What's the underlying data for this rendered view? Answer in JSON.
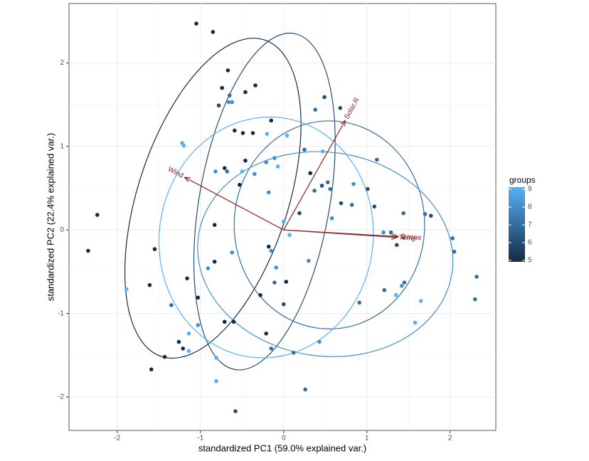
{
  "chart_data": {
    "type": "scatter",
    "xlabel": "standardized PC1 (59.0% explained var.)",
    "ylabel": "standardized PC2 (22.4% explained var.)",
    "xlim": [
      -2.58,
      2.55
    ],
    "ylim": [
      -2.4,
      2.71
    ],
    "xticks": [
      -2,
      -1,
      0,
      1,
      2
    ],
    "yticks": [
      -2,
      -1,
      0,
      1,
      2
    ],
    "grid": true,
    "x": [
      -1.05,
      -0.85,
      -0.67,
      -0.74,
      -0.34,
      -0.46,
      -0.65,
      -0.66,
      -0.62,
      -0.78,
      -0.15,
      0.38,
      0.49,
      0.68,
      -0.59,
      -0.49,
      -0.37,
      -0.2,
      0.04,
      -1.22,
      -1.2,
      0.25,
      0.47,
      1.12,
      -0.46,
      -0.11,
      -0.21,
      -0.07,
      -0.71,
      -0.82,
      -0.68,
      -0.5,
      -0.35,
      0.32,
      0.53,
      0.46,
      0.56,
      0.84,
      1.01,
      -0.53,
      -0.18,
      0.37,
      0.69,
      0.82,
      1.09,
      1.44,
      1.7,
      1.77,
      -2.24,
      0.19,
      0.58,
      0,
      -0.83,
      0.07,
      1.2,
      1.29,
      1.44,
      2.03,
      -2.35,
      -1.55,
      -0.18,
      -0.15,
      1.36,
      2.05,
      -0.62,
      -0.83,
      0.3,
      -0.91,
      -0.09,
      -1.16,
      0.03,
      -0.11,
      2.32,
      -1.61,
      -1.89,
      1.45,
      1.42,
      1.21,
      1.35,
      -0.28,
      -1.03,
      2.3,
      0.91,
      -1.35,
      0,
      1.65,
      -0.71,
      -1.03,
      -0.6,
      1.58,
      -0.21,
      -1.14,
      -1.26,
      0.43,
      -0.15,
      -1.21,
      -1.14,
      0.12,
      -1.43,
      -0.81,
      -1.59,
      -0.81,
      0.26,
      -0.58
    ],
    "y": [
      2.47,
      2.37,
      1.91,
      1.7,
      1.73,
      1.65,
      1.61,
      1.53,
      1.53,
      1.49,
      1.31,
      1.44,
      1.59,
      1.46,
      1.19,
      1.16,
      1.16,
      1.15,
      1.13,
      1.04,
      1.01,
      0.96,
      0.94,
      0.84,
      0.83,
      0.86,
      0.81,
      0.76,
      0.74,
      0.7,
      0.7,
      0.7,
      0.67,
      0.68,
      0.57,
      0.53,
      0.49,
      0.55,
      0.49,
      0.54,
      0.45,
      0.47,
      0.32,
      0.3,
      0.28,
      0.2,
      0.19,
      0.17,
      0.18,
      0.2,
      0.14,
      0.1,
      0.06,
      -0.06,
      -0.03,
      -0.03,
      -0.09,
      -0.1,
      -0.25,
      -0.23,
      -0.2,
      -0.25,
      -0.18,
      -0.26,
      -0.27,
      -0.38,
      -0.37,
      -0.46,
      -0.45,
      -0.58,
      -0.62,
      -0.63,
      -0.56,
      -0.66,
      -0.71,
      -0.63,
      -0.67,
      -0.72,
      -0.78,
      -0.78,
      -0.81,
      -0.83,
      -0.87,
      -0.9,
      -0.89,
      -0.85,
      -1.1,
      -1.14,
      -1.1,
      -1.11,
      -1.24,
      -1.24,
      -1.34,
      -1.34,
      -1.42,
      -1.42,
      -1.45,
      -1.47,
      -1.52,
      -1.53,
      -1.67,
      -1.81,
      -1.91,
      -2.17
    ],
    "group": [
      5,
      5,
      5,
      5,
      5,
      5,
      7,
      8,
      8,
      6,
      5,
      7,
      6,
      6,
      5,
      5,
      5,
      9,
      9,
      9,
      9,
      7,
      9,
      7,
      5,
      8,
      8,
      9,
      5,
      8,
      7,
      9,
      8,
      5,
      7,
      6,
      7,
      8,
      6,
      5,
      8,
      7,
      6,
      7,
      6,
      7,
      7,
      6,
      5,
      6,
      8,
      9,
      5,
      9,
      8,
      7,
      8,
      7,
      5,
      5,
      5,
      8,
      6,
      7,
      8,
      5,
      8,
      8,
      8,
      5,
      5,
      7,
      7,
      5,
      9,
      7,
      8,
      7,
      9,
      5,
      5,
      7,
      7,
      7,
      6,
      9,
      5,
      8,
      5,
      9,
      5,
      9,
      5,
      8,
      7,
      5,
      9,
      7,
      5,
      9,
      5,
      9,
      7,
      6
    ],
    "ellipses": [
      {
        "group": 5,
        "center": [
          -0.85,
          0.38
        ],
        "semi_major": 2.0,
        "semi_minor": 0.9,
        "angle": 72
      },
      {
        "group": 6,
        "center": [
          -0.23,
          0.34
        ],
        "semi_major": 2.05,
        "semi_minor": 0.78,
        "angle": 80
      },
      {
        "group": 7,
        "center": [
          0.55,
          0.06
        ],
        "semi_major": 1.25,
        "semi_minor": 1.14,
        "angle": 90
      },
      {
        "group": 8,
        "center": [
          0.5,
          -0.29
        ],
        "semi_major": 1.54,
        "semi_minor": 1.22,
        "angle": -8
      },
      {
        "group": 9,
        "center": [
          -0.21,
          -0.09
        ],
        "semi_major": 1.45,
        "semi_minor": 1.28,
        "angle": 82
      }
    ],
    "arrows": {
      "color": "#8b2323",
      "items": [
        {
          "name": "Solar.R",
          "x": 0.74,
          "y": 1.31
        },
        {
          "name": "Wind",
          "x": -1.19,
          "y": 0.63
        },
        {
          "name": "Temp",
          "x": 1.36,
          "y": -0.09
        },
        {
          "name": "Ozone",
          "x": 1.38,
          "y": -0.08
        }
      ]
    },
    "legend": {
      "title": "groups",
      "ticks": [
        5,
        6,
        7,
        8,
        9
      ],
      "low": "#132B43",
      "high": "#56B1F7"
    }
  }
}
